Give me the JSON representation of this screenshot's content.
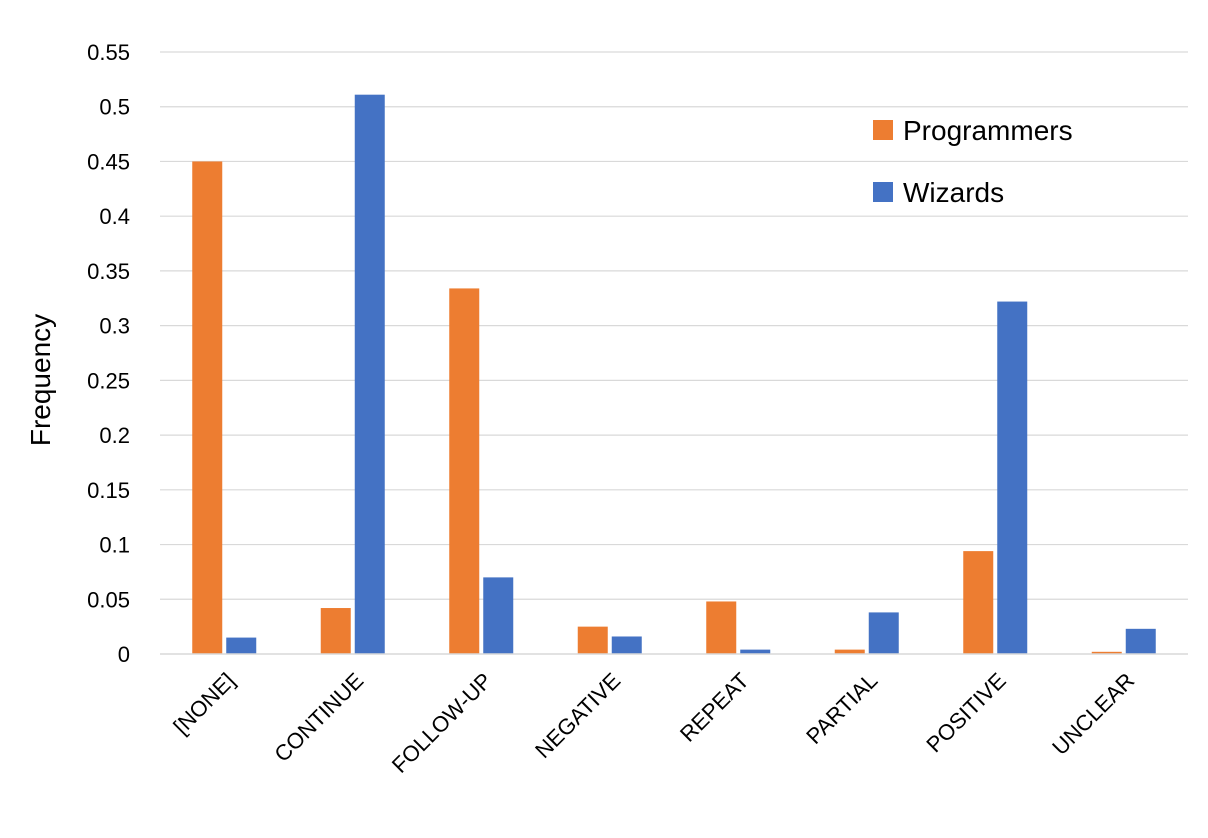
{
  "chart_data": {
    "type": "bar",
    "title": "",
    "xlabel": "",
    "ylabel": "Frequency",
    "ylim": [
      0,
      0.55
    ],
    "yticks": [
      "0",
      "0.05",
      "0.1",
      "0.15",
      "0.2",
      "0.25",
      "0.3",
      "0.35",
      "0.4",
      "0.45",
      "0.5",
      "0.55"
    ],
    "grid": true,
    "legend_position": "top-right",
    "categories": [
      "[NONE]",
      "CONTINUE",
      "FOLLOW-UP",
      "NEGATIVE",
      "REPEAT",
      "PARTIAL",
      "POSITIVE",
      "UNCLEAR"
    ],
    "series": [
      {
        "name": "Programmers",
        "color": "#ED7D31",
        "values": [
          0.45,
          0.042,
          0.334,
          0.025,
          0.048,
          0.004,
          0.094,
          0.002
        ]
      },
      {
        "name": "Wizards",
        "color": "#4472C4",
        "values": [
          0.015,
          0.511,
          0.07,
          0.016,
          0.004,
          0.038,
          0.322,
          0.023
        ]
      }
    ]
  }
}
